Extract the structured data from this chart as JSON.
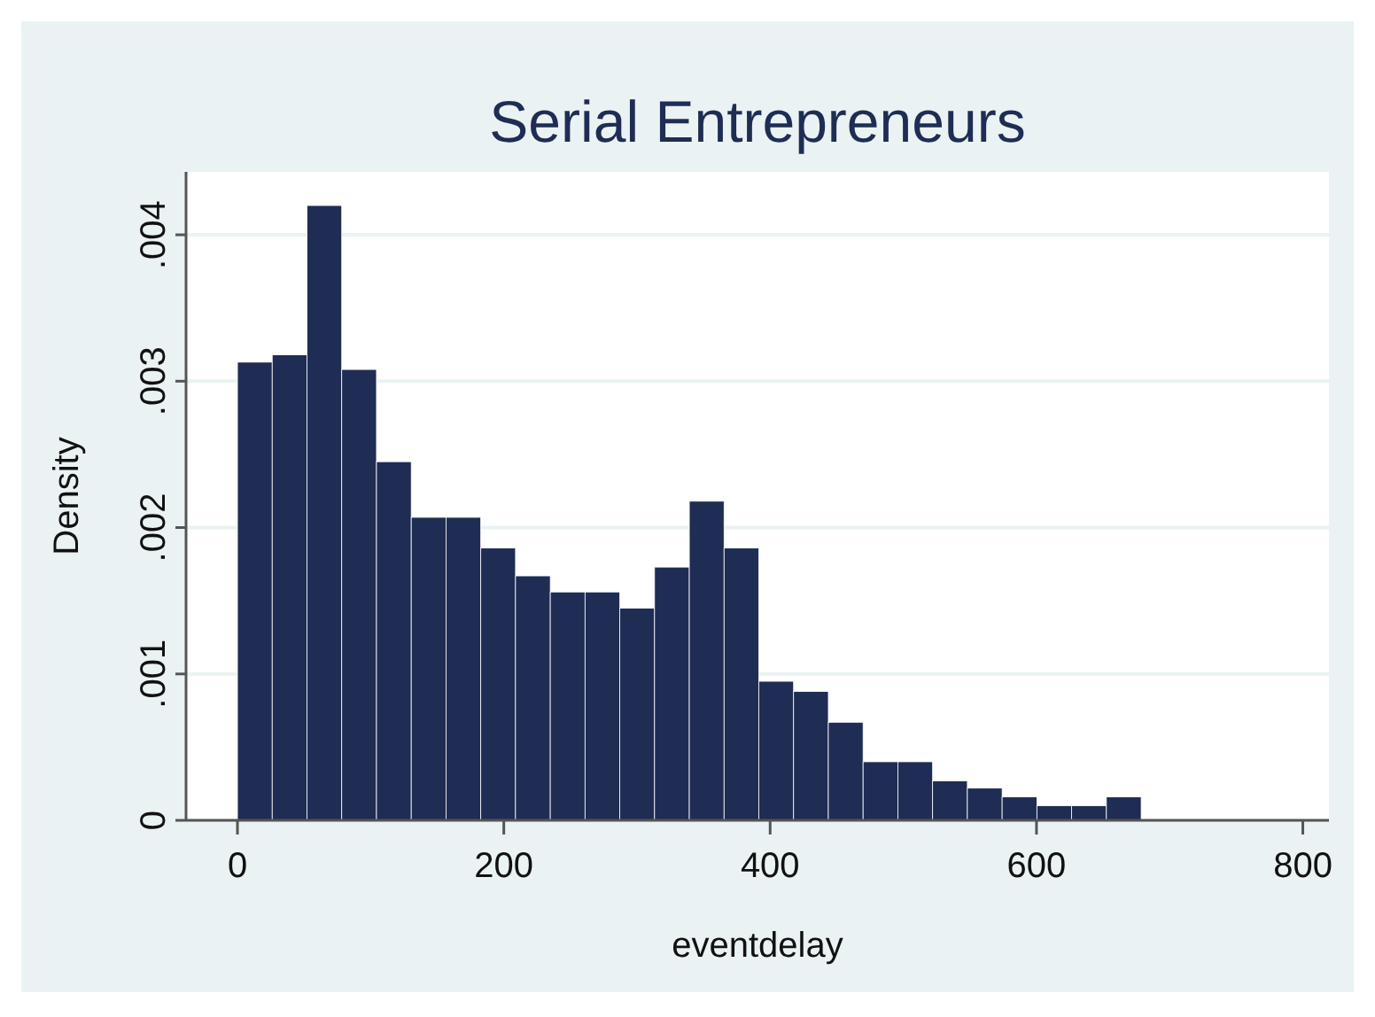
{
  "chart_data": {
    "type": "histogram",
    "title": "Serial Entrepreneurs",
    "xlabel": "eventdelay",
    "ylabel": "Density",
    "color": "#1f2d54",
    "bins": [
      0,
      26.1,
      52.2,
      78.3,
      104.4,
      130.5,
      156.6,
      182.7,
      208.8,
      234.9,
      261,
      287.1,
      313.2,
      339.3,
      365.4,
      391.5,
      417.6,
      443.7,
      469.8,
      495.9,
      522,
      548.1,
      574.2,
      600.3,
      626.4,
      652.5,
      678.6
    ],
    "values": [
      0.00313,
      0.00318,
      0.0042,
      0.00308,
      0.00245,
      0.00207,
      0.00207,
      0.00186,
      0.00167,
      0.00156,
      0.00156,
      0.00145,
      0.00173,
      0.00218,
      0.00186,
      0.00095,
      0.00088,
      0.00067,
      0.0004,
      0.0004,
      0.00027,
      0.00022,
      0.00016,
      0.0001,
      0.0001,
      0.00016
    ],
    "xlim": [
      -38.6,
      819.6
    ],
    "ylim": [
      0,
      0.00443
    ],
    "xticks": [
      0,
      200,
      400,
      600,
      800
    ],
    "yticks": [
      0,
      {
        "value": 0.001,
        "label": ".001"
      },
      {
        "value": 0.002,
        "label": ".002"
      },
      {
        "value": 0.003,
        "label": ".003"
      },
      {
        "value": 0.004,
        "label": ".004"
      }
    ],
    "grid": "y"
  }
}
